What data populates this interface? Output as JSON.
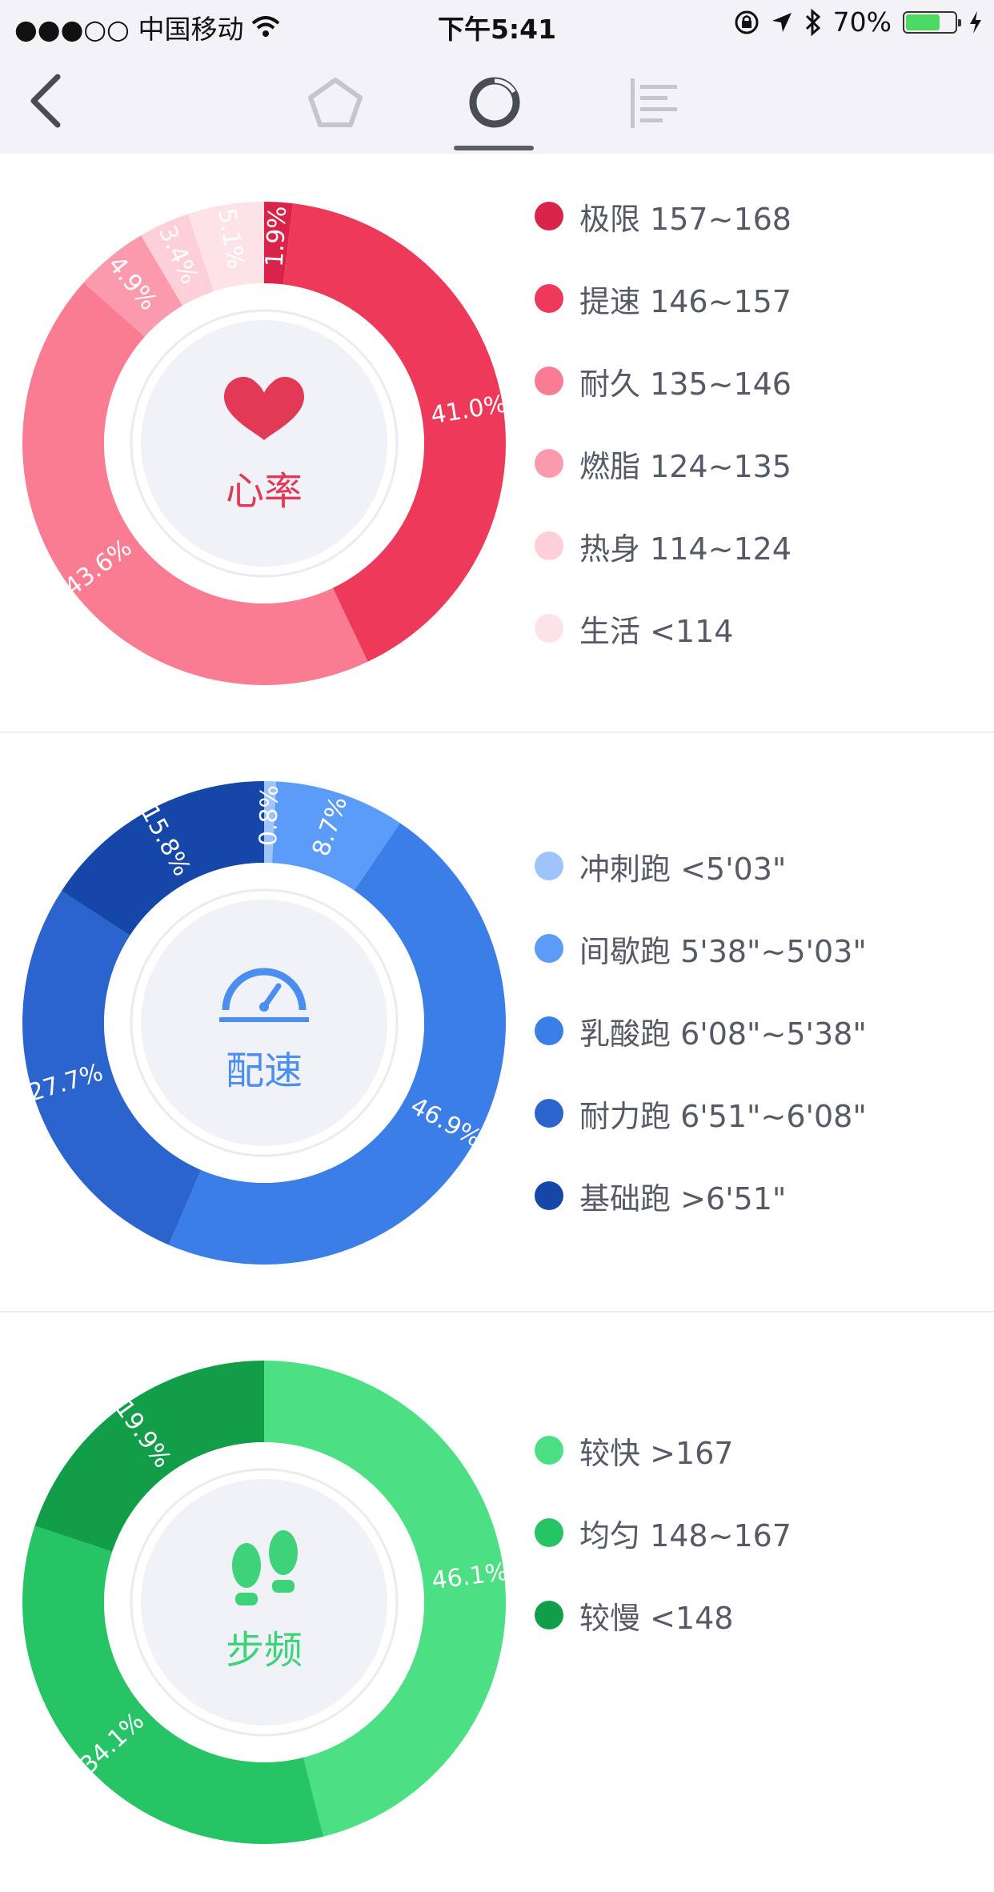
{
  "status_bar": {
    "carrier": "●●●○○ 中国移动",
    "time": "下午5:41",
    "battery": "70%",
    "battery_level": 0.7
  },
  "nav": {
    "tabs": [
      "pentagon-icon",
      "ring-chart-icon",
      "bar-list-icon"
    ],
    "active_tab": 1
  },
  "chart_data": [
    {
      "type": "pie",
      "center_label": "心率",
      "center_icon": "heart-icon",
      "label_color": "#e23a56",
      "categories": [
        "极限 157~168",
        "提速 146~157",
        "耐久 135~146",
        "燃脂 124~135",
        "热身 114~124",
        "生活 <114"
      ],
      "values": [
        1.9,
        41.0,
        43.6,
        4.9,
        3.4,
        5.1
      ],
      "value_labels": [
        "1.9%",
        "41.0%",
        "43.6%",
        "4.9%",
        "3.4%",
        "5.1%"
      ],
      "value_order": [
        0,
        1,
        2,
        3,
        4,
        5
      ],
      "slice_colors": [
        "#d9244a",
        "#ee3a5a",
        "#f97c93",
        "#fb9aad",
        "#fdcfd8",
        "#fde3e8"
      ],
      "legend_colors": [
        "#d9244a",
        "#ee3a5a",
        "#f97c93",
        "#fb9aad",
        "#fdcfd8",
        "#fde3e8"
      ],
      "legend_placement": "right"
    },
    {
      "type": "pie",
      "center_label": "配速",
      "center_icon": "speedometer-icon",
      "label_color": "#4a8ef0",
      "categories": [
        "冲刺跑 <5'03\"",
        "间歇跑 5'38\"~5'03\"",
        "乳酸跑 6'08\"~5'38\"",
        "耐力跑 6'51\"~6'08\"",
        "基础跑 >6'51\""
      ],
      "values": [
        0.8,
        8.7,
        46.9,
        27.7,
        15.8
      ],
      "value_labels": [
        "0.8%",
        "8.7%",
        "46.9%",
        "27.7%",
        "15.8%"
      ],
      "slice_colors": [
        "#9fc3fb",
        "#5b9cf9",
        "#3b7ee8",
        "#2a64cc",
        "#1547a8"
      ],
      "legend_colors": [
        "#9fc3fb",
        "#5b9cf9",
        "#3b7ee8",
        "#2a64cc",
        "#1547a8"
      ],
      "legend_placement": "right"
    },
    {
      "type": "pie",
      "center_label": "步频",
      "center_icon": "footprints-icon",
      "label_color": "#3ed27a",
      "categories": [
        "较快 >167",
        "均匀 148~167",
        "较慢 <148"
      ],
      "values": [
        46.1,
        34.1,
        19.9
      ],
      "value_labels": [
        "46.1%",
        "34.1%",
        "19.9%"
      ],
      "slice_colors": [
        "#4cdf83",
        "#27c466",
        "#129e48"
      ],
      "legend_colors": [
        "#4cdf83",
        "#27c466",
        "#129e48"
      ],
      "legend_placement": "right"
    }
  ]
}
